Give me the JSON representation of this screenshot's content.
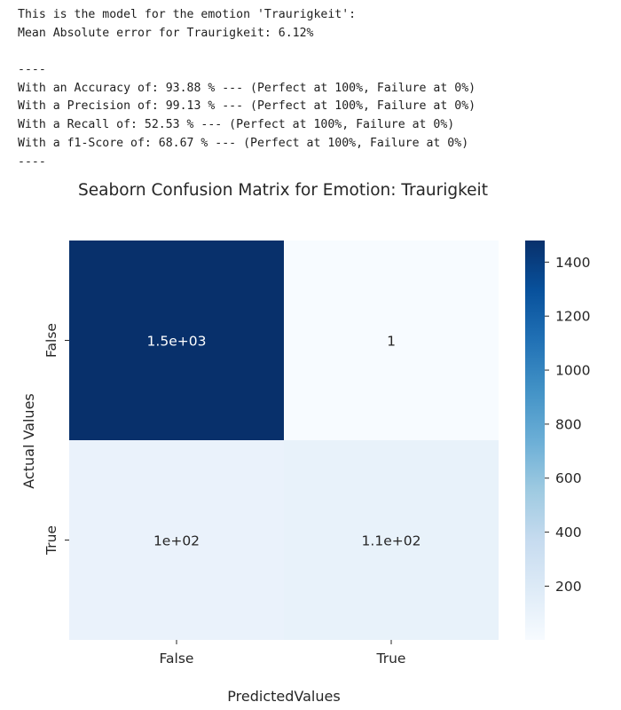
{
  "output": {
    "lines": [
      "This is the model for the emotion 'Traurigkeit':",
      "Mean Absolute error for Traurigkeit: 6.12%",
      "",
      "----",
      "With an Accuracy of: 93.88 % --- (Perfect at 100%, Failure at 0%)",
      "With a Precision of: 99.13 % --- (Perfect at 100%, Failure at 0%)",
      "With a Recall of: 52.53 % --- (Perfect at 100%, Failure at 0%)",
      "With a f1-Score of: 68.67 % --- (Perfect at 100%, Failure at 0%)",
      "----"
    ]
  },
  "chart_data": {
    "type": "heatmap",
    "title": "Seaborn Confusion Matrix for Emotion: Traurigkeit",
    "xlabel": "PredictedValues",
    "ylabel": "Actual Values",
    "x_categories": [
      "False",
      "True"
    ],
    "y_categories": [
      "False",
      "True"
    ],
    "values": [
      [
        1480,
        1
      ],
      [
        100,
        110
      ]
    ],
    "annotations": [
      [
        "1.5e+03",
        "1"
      ],
      [
        "1e+02",
        "1.1e+02"
      ]
    ],
    "colormap": "Blues",
    "colorbar": {
      "ticks": [
        200,
        400,
        600,
        800,
        1000,
        1200,
        1400
      ],
      "vmin": 1,
      "vmax": 1480
    },
    "colors": {
      "low": "#f7fbff",
      "high": "#08306b",
      "text_dark": "#262626",
      "text_light": "#ffffff"
    }
  }
}
